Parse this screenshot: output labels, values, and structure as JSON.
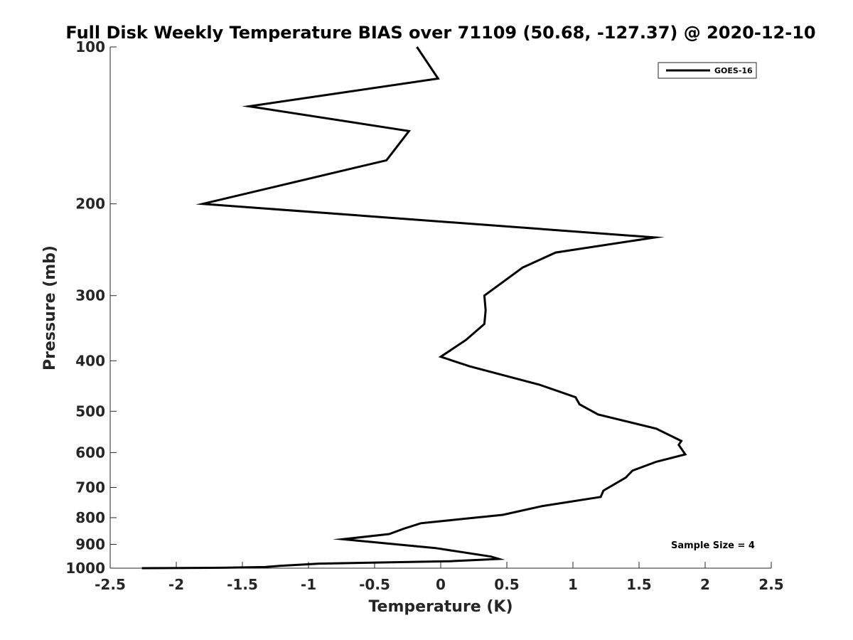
{
  "chart_data": {
    "type": "line",
    "title": "Full Disk Weekly Temperature BIAS over 71109 (50.68, -127.37) @ 2020-12-10",
    "xlabel": "Temperature (K)",
    "ylabel": "Pressure (mb)",
    "xlim": [
      -2.5,
      2.5
    ],
    "ylim": [
      1000,
      100
    ],
    "yscale": "log",
    "xticks": [
      -2.5,
      -2,
      -1.5,
      -1,
      -0.5,
      0,
      0.5,
      1,
      1.5,
      2,
      2.5
    ],
    "xtick_labels": [
      "-2.5",
      "-2",
      "-1.5",
      "-1",
      "-0.5",
      "0",
      "0.5",
      "1",
      "1.5",
      "2",
      "2.5"
    ],
    "yticks": [
      100,
      200,
      300,
      400,
      500,
      600,
      700,
      800,
      900,
      1000
    ],
    "ytick_labels": [
      "100",
      "200",
      "300",
      "400",
      "500",
      "600",
      "700",
      "800",
      "900",
      "1000"
    ],
    "grid": false,
    "legend_position": "top-right",
    "series": [
      {
        "name": "GOES-16",
        "color": "#000000",
        "x": [
          -0.18,
          -0.02,
          -1.45,
          -0.24,
          -0.41,
          -1.8,
          1.62,
          0.87,
          0.62,
          0.33,
          0.34,
          0.33,
          0.19,
          0.0,
          0.22,
          0.75,
          1.02,
          1.05,
          1.19,
          1.63,
          1.82,
          1.8,
          1.85,
          1.63,
          1.45,
          1.4,
          1.23,
          1.21,
          0.77,
          0.47,
          -0.15,
          -0.28,
          -0.39,
          -0.74,
          -0.04,
          0.38,
          0.44,
          0.06,
          -0.92,
          -1.22,
          -1.33,
          -1.65,
          -2.26
        ],
        "y": [
          100,
          115,
          130,
          145,
          165,
          200,
          232,
          248,
          265,
          300,
          320,
          340,
          365,
          393,
          410,
          445,
          470,
          485,
          507,
          540,
          570,
          580,
          605,
          625,
          650,
          670,
          710,
          730,
          760,
          790,
          820,
          840,
          860,
          880,
          915,
          950,
          960,
          970,
          980,
          990,
          995,
          998,
          1000
        ]
      }
    ],
    "legend": [
      "GOES-16"
    ],
    "annotation": "Sample Size = 4"
  }
}
